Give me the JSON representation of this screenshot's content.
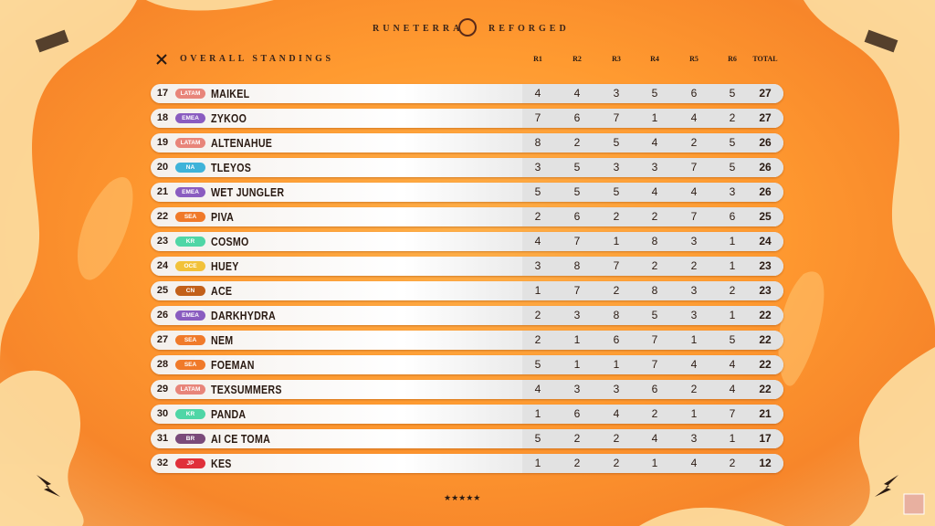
{
  "header": {
    "left": "RUNETERRA",
    "right": "REFORGED"
  },
  "table": {
    "title": "OVERALL STANDINGS",
    "columns": [
      "R1",
      "R2",
      "R3",
      "R4",
      "R5",
      "R6",
      "TOTAL"
    ],
    "rows": [
      {
        "rank": 17,
        "region": "LATAM",
        "region_color": "#e8857a",
        "name": "MAIKEL",
        "scores": [
          4,
          4,
          3,
          5,
          6,
          5
        ],
        "total": 27
      },
      {
        "rank": 18,
        "region": "EMEA",
        "region_color": "#8a5cc0",
        "name": "ZYKOO",
        "scores": [
          7,
          6,
          7,
          1,
          4,
          2
        ],
        "total": 27
      },
      {
        "rank": 19,
        "region": "LATAM",
        "region_color": "#e8857a",
        "name": "ALTENAHUE",
        "scores": [
          8,
          2,
          5,
          4,
          2,
          5
        ],
        "total": 26
      },
      {
        "rank": 20,
        "region": "NA",
        "region_color": "#3fb3d9",
        "name": "TLEYOS",
        "scores": [
          3,
          5,
          3,
          3,
          7,
          5
        ],
        "total": 26
      },
      {
        "rank": 21,
        "region": "EMEA",
        "region_color": "#8a5cc0",
        "name": "WET JUNGLER",
        "scores": [
          5,
          5,
          5,
          4,
          4,
          3
        ],
        "total": 26
      },
      {
        "rank": 22,
        "region": "SEA",
        "region_color": "#f07a2a",
        "name": "PIVA",
        "scores": [
          2,
          6,
          2,
          2,
          7,
          6
        ],
        "total": 25
      },
      {
        "rank": 23,
        "region": "KR",
        "region_color": "#4fd6a6",
        "name": "COSMO",
        "scores": [
          4,
          7,
          1,
          8,
          3,
          1
        ],
        "total": 24
      },
      {
        "rank": 24,
        "region": "OCE",
        "region_color": "#f2c23a",
        "name": "HUEY",
        "scores": [
          3,
          8,
          7,
          2,
          2,
          1
        ],
        "total": 23
      },
      {
        "rank": 25,
        "region": "CN",
        "region_color": "#c2601a",
        "name": "ACE",
        "scores": [
          1,
          7,
          2,
          8,
          3,
          2
        ],
        "total": 23
      },
      {
        "rank": 26,
        "region": "EMEA",
        "region_color": "#8a5cc0",
        "name": "DARKHYDRA",
        "scores": [
          2,
          3,
          8,
          5,
          3,
          1
        ],
        "total": 22
      },
      {
        "rank": 27,
        "region": "SEA",
        "region_color": "#f07a2a",
        "name": "NEM",
        "scores": [
          2,
          1,
          6,
          7,
          1,
          5
        ],
        "total": 22
      },
      {
        "rank": 28,
        "region": "SEA",
        "region_color": "#f07a2a",
        "name": "FOEMAN",
        "scores": [
          5,
          1,
          1,
          7,
          4,
          4
        ],
        "total": 22
      },
      {
        "rank": 29,
        "region": "LATAM",
        "region_color": "#e8857a",
        "name": "TEXSUMMERS",
        "scores": [
          4,
          3,
          3,
          6,
          2,
          4
        ],
        "total": 22
      },
      {
        "rank": 30,
        "region": "KR",
        "region_color": "#4fd6a6",
        "name": "PANDA",
        "scores": [
          1,
          6,
          4,
          2,
          1,
          7
        ],
        "total": 21
      },
      {
        "rank": 31,
        "region": "BR",
        "region_color": "#7a4a7a",
        "name": "AI CE TOMA",
        "scores": [
          5,
          2,
          2,
          4,
          3,
          1
        ],
        "total": 17
      },
      {
        "rank": 32,
        "region": "JP",
        "region_color": "#e0303a",
        "name": "KES",
        "scores": [
          1,
          2,
          2,
          1,
          4,
          2
        ],
        "total": 12
      }
    ]
  }
}
